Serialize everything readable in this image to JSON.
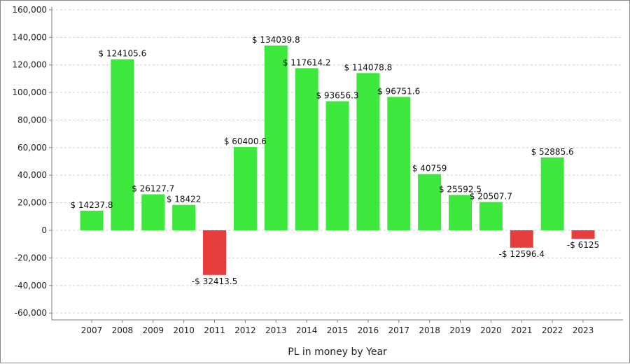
{
  "chart_data": {
    "type": "bar",
    "title": "",
    "xlabel": "PL in money by Year",
    "ylabel": "",
    "categories": [
      "2007",
      "2008",
      "2009",
      "2010",
      "2011",
      "2012",
      "2013",
      "2014",
      "2015",
      "2016",
      "2017",
      "2018",
      "2019",
      "2020",
      "2021",
      "2022",
      "2023"
    ],
    "values": [
      14237.8,
      124105.6,
      26127.7,
      18422,
      -32413.5,
      60400.6,
      134039.8,
      117614.2,
      93656.3,
      114078.8,
      96751.6,
      40759,
      25592.5,
      20507.7,
      -12596.4,
      52885.6,
      -6125
    ],
    "data_labels": [
      "$ 14237.8",
      "$ 124105.6",
      "$ 26127.7",
      "$ 18422",
      "-$ 32413.5",
      "$ 60400.6",
      "$ 134039.8",
      "$ 117614.2",
      "$ 93656.3",
      "$ 114078.8",
      "$ 96751.6",
      "$ 40759",
      "$ 25592.5",
      "$ 20507.7",
      "-$ 12596.4",
      "$ 52885.6",
      "-$ 6125"
    ],
    "ylim": [
      -65000,
      162000
    ],
    "yticks": [
      -60000,
      -40000,
      -20000,
      0,
      20000,
      40000,
      60000,
      80000,
      100000,
      120000,
      140000,
      160000
    ],
    "ytick_labels": [
      "-60,000",
      "-40,000",
      "-20,000",
      "0",
      "20,000",
      "40,000",
      "60,000",
      "80,000",
      "100,000",
      "120,000",
      "140,000",
      "160,000"
    ],
    "grid": true,
    "colors": {
      "positive": "#3de83d",
      "negative": "#e83d3d",
      "grid": "#d0d0d0",
      "axis": "#808080"
    }
  }
}
